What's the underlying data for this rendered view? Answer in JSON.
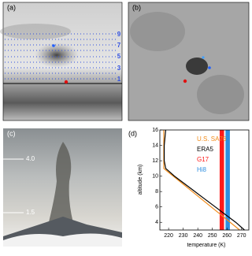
{
  "panels": [
    {
      "label": "(a)",
      "levels": [
        "9",
        "7",
        "5",
        "3",
        "1"
      ]
    },
    {
      "label": "(b)"
    },
    {
      "label": "(c)",
      "levels": [
        "4.0",
        "1.5"
      ]
    }
  ],
  "chart_data": {
    "type": "line",
    "panel_label": "(d)",
    "x_label": "temperature (K)",
    "y_label": "altitude (km)",
    "xlim": [
      214,
      275
    ],
    "xticks": [
      220,
      230,
      240,
      250,
      260,
      270
    ],
    "ylim": [
      3,
      16
    ],
    "yticks": [
      4,
      6,
      8,
      10,
      12,
      14,
      16
    ],
    "altitudes": [
      3,
      4,
      5,
      6,
      7,
      8,
      9,
      10,
      10.5,
      11,
      12,
      14,
      16
    ],
    "series": [
      {
        "name": "U.S. SA76",
        "color": "#f28c1a",
        "values": [
          268.7,
          262.2,
          255.7,
          249.2,
          242.7,
          236.2,
          229.7,
          223.2,
          219.9,
          216.7,
          216.7,
          216.7,
          216.7
        ]
      },
      {
        "name": "ERA5",
        "color": "#000000",
        "values": [
          272,
          266,
          259,
          252,
          245,
          238,
          231,
          224,
          221,
          218,
          217,
          217,
          218
        ]
      }
    ],
    "bands": [
      {
        "name": "G17",
        "color": "#ff1a1a",
        "range": [
          255,
          258
        ]
      },
      {
        "name": "Hi8",
        "color": "#2f8fe0",
        "range": [
          259,
          262
        ]
      }
    ]
  }
}
